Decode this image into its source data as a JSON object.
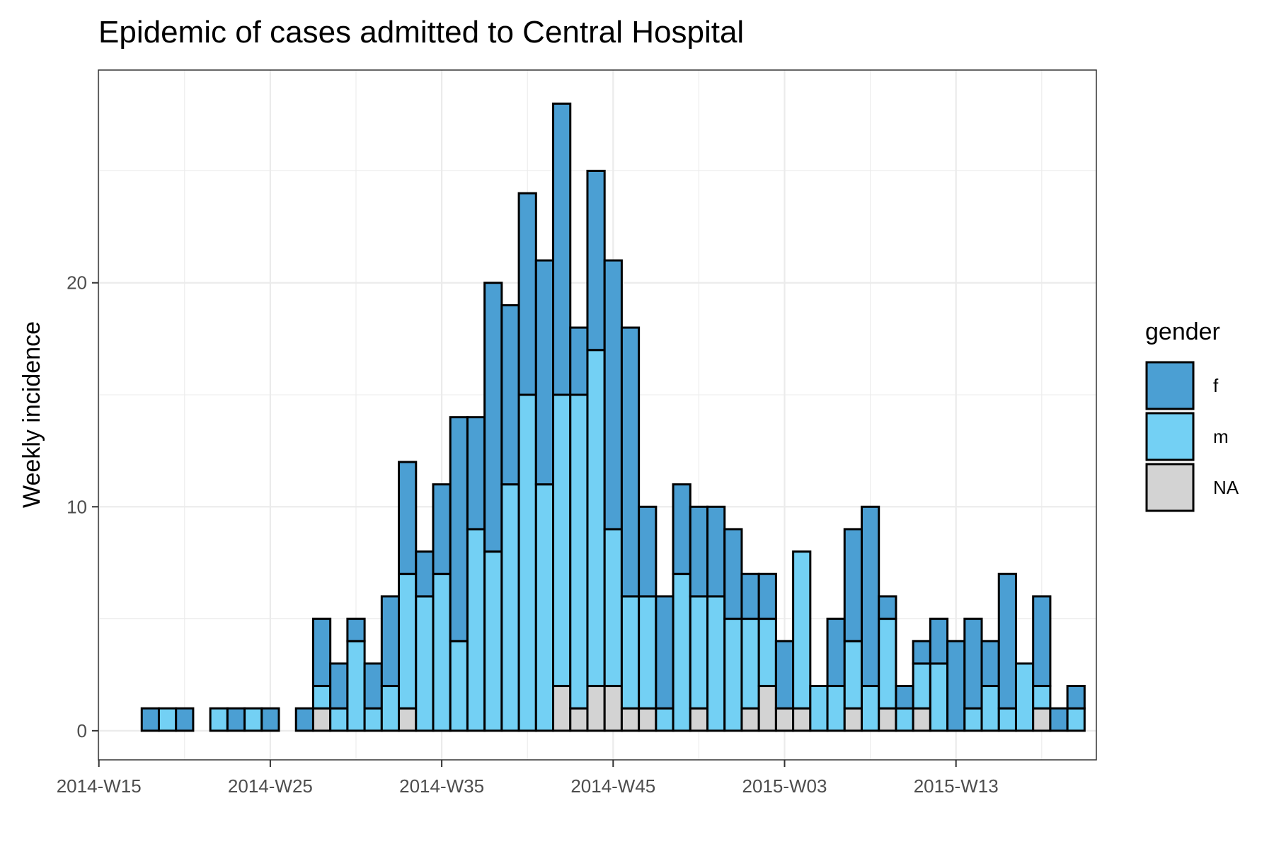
{
  "chart_data": {
    "type": "bar",
    "stacked": true,
    "title": "Epidemic of cases admitted to Central Hospital",
    "xlabel": "",
    "ylabel": "Weekly incidence",
    "x_ticks": [
      "2014-W15",
      "2014-W25",
      "2014-W35",
      "2014-W45",
      "2015-W03",
      "2015-W13"
    ],
    "y_ticks": [
      0,
      10,
      20
    ],
    "ylim": [
      -1.3,
      29.5
    ],
    "grid": true,
    "legend": {
      "title": "gender",
      "position": "right",
      "entries": [
        "f",
        "m",
        "NA"
      ]
    },
    "colors": {
      "f": "#4B9FD3",
      "m": "#73D0F4",
      "NA": "#D3D3D3",
      "grid": "#EBEBEB",
      "border": "#333333"
    },
    "categories": [
      "2014-W18",
      "2014-W19",
      "2014-W20",
      "2014-W22",
      "2014-W23",
      "2014-W24",
      "2014-W25",
      "2014-W27",
      "2014-W28",
      "2014-W29",
      "2014-W30",
      "2014-W31",
      "2014-W32",
      "2014-W33",
      "2014-W34",
      "2014-W35",
      "2014-W36",
      "2014-W37",
      "2014-W38",
      "2014-W39",
      "2014-W40",
      "2014-W41",
      "2014-W42",
      "2014-W43",
      "2014-W44",
      "2014-W45",
      "2014-W46",
      "2014-W47",
      "2014-W48",
      "2014-W49",
      "2014-W50",
      "2014-W51",
      "2014-W52",
      "2015-W01",
      "2015-W02",
      "2015-W03",
      "2015-W04",
      "2015-W05",
      "2015-W06",
      "2015-W07",
      "2015-W08",
      "2015-W09",
      "2015-W10",
      "2015-W11",
      "2015-W12",
      "2015-W13",
      "2015-W14",
      "2015-W15",
      "2015-W16",
      "2015-W17",
      "2015-W18",
      "2015-W19",
      "2015-W20"
    ],
    "series": [
      {
        "name": "NA",
        "values": [
          0,
          0,
          0,
          0,
          0,
          0,
          0,
          0,
          1,
          0,
          0,
          0,
          0,
          1,
          0,
          0,
          0,
          0,
          0,
          0,
          0,
          0,
          2,
          1,
          2,
          2,
          1,
          1,
          0,
          0,
          1,
          0,
          0,
          1,
          2,
          1,
          1,
          0,
          0,
          1,
          0,
          1,
          0,
          1,
          0,
          0,
          0,
          0,
          0,
          0,
          1,
          0,
          0
        ]
      },
      {
        "name": "m",
        "values": [
          0,
          1,
          0,
          1,
          0,
          1,
          0,
          0,
          1,
          1,
          4,
          1,
          2,
          6,
          6,
          7,
          4,
          9,
          8,
          11,
          15,
          11,
          13,
          14,
          15,
          7,
          5,
          5,
          1,
          7,
          5,
          6,
          5,
          4,
          3,
          0,
          7,
          2,
          2,
          3,
          2,
          4,
          1,
          2,
          3,
          0,
          1,
          2,
          1,
          3,
          1,
          0,
          1
        ]
      },
      {
        "name": "f",
        "values": [
          1,
          0,
          1,
          0,
          1,
          0,
          1,
          1,
          3,
          2,
          1,
          2,
          4,
          5,
          2,
          4,
          10,
          5,
          12,
          8,
          9,
          10,
          13,
          3,
          8,
          12,
          12,
          4,
          5,
          4,
          4,
          4,
          4,
          2,
          2,
          3,
          0,
          0,
          3,
          5,
          8,
          1,
          1,
          1,
          2,
          4,
          4,
          2,
          6,
          0,
          4,
          1,
          1
        ]
      }
    ]
  }
}
